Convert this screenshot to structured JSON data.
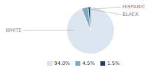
{
  "chart_data": {
    "type": "pie",
    "categories": [
      "WHITE",
      "HISPANIC",
      "BLACK"
    ],
    "values": [
      94.0,
      4.5,
      1.5
    ],
    "value_labels": [
      "94.0%",
      "4.5%",
      "1.5%"
    ],
    "colors": [
      "#dce6f0",
      "#7bacc4",
      "#243f5e"
    ],
    "legend": "bottom"
  }
}
